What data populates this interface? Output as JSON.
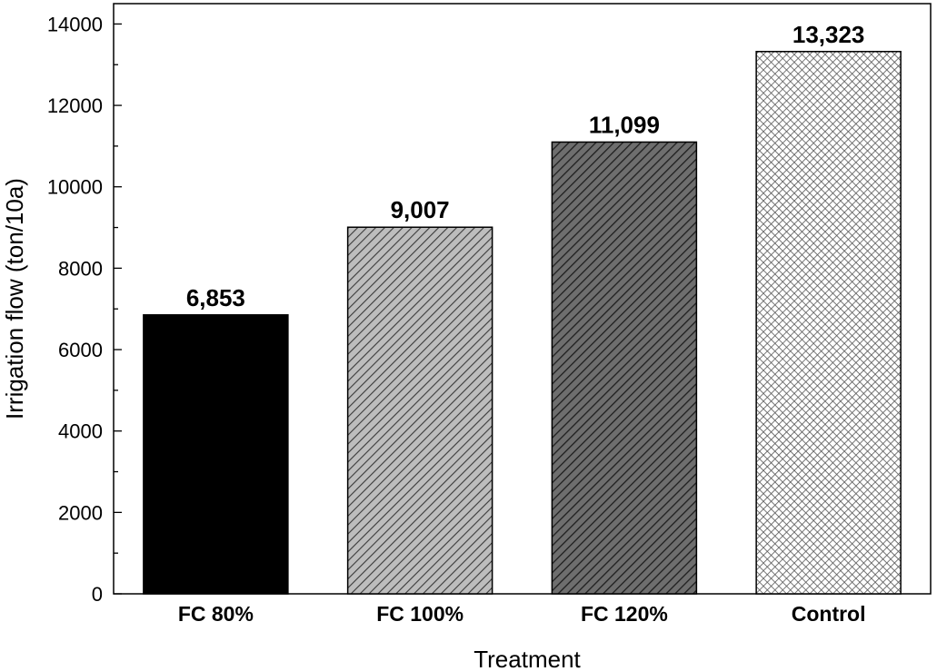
{
  "chart_data": {
    "type": "bar",
    "categories": [
      "FC 80%",
      "FC 100%",
      "FC 120%",
      "Control"
    ],
    "values": [
      6853,
      9007,
      11099,
      13323
    ],
    "value_labels": [
      "6,853",
      "9,007",
      "11,099",
      "13,323"
    ],
    "xlabel": "Treatment",
    "ylabel": "Irrigation flow (ton/10a)",
    "ylim": [
      0,
      14500
    ],
    "yticks": [
      0,
      2000,
      4000,
      6000,
      8000,
      10000,
      12000,
      14000
    ],
    "ytick_labels": [
      "0",
      "2000",
      "4000",
      "6000",
      "8000",
      "10000",
      "12000",
      "14000"
    ],
    "minor_tick_step": 1000,
    "grid": false,
    "bar_fills": [
      {
        "pattern": "solid",
        "color": "#000000"
      },
      {
        "pattern": "diagonal",
        "background": "#bdbdbd",
        "line": "#3a3a3a"
      },
      {
        "pattern": "diagonal",
        "background": "#6e6e6e",
        "line": "#1e1e1e"
      },
      {
        "pattern": "crosshatch",
        "background": "#ffffff",
        "line": "#555555"
      }
    ]
  }
}
